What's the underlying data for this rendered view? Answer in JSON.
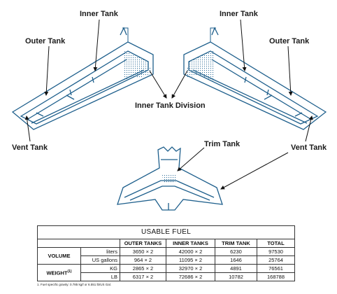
{
  "labels": {
    "inner_tank_left": "Inner Tank",
    "inner_tank_right": "Inner Tank",
    "outer_tank_left": "Outer Tank",
    "outer_tank_right": "Outer Tank",
    "inner_tank_division": "Inner Tank Division",
    "vent_tank_left": "Vent Tank",
    "vent_tank_right": "Vent Tank",
    "trim_tank": "Trim Tank"
  },
  "colors": {
    "structure": "#1e5f8c",
    "dots": "#2a6a96",
    "arrow": "#111111"
  },
  "table": {
    "title": "USABLE FUEL",
    "headers": [
      "OUTER TANKS",
      "INNER TANKS",
      "TRIM TANK",
      "TOTAL"
    ],
    "groups": [
      {
        "name": "VOLUME",
        "note": "",
        "rows": [
          {
            "unit": "liters",
            "values": [
              "3650 × 2",
              "42000 × 2",
              "6230",
              "97530"
            ]
          },
          {
            "unit": "US gallons",
            "values": [
              "964 × 2",
              "11095 × 2",
              "1646",
              "25764"
            ]
          }
        ]
      },
      {
        "name": "WEIGHT",
        "note": "(1)",
        "rows": [
          {
            "unit": "KG",
            "values": [
              "2865 × 2",
              "32970 × 2",
              "4891",
              "76561"
            ]
          },
          {
            "unit": "LB",
            "values": [
              "6317 × 2",
              "72686 × 2",
              "10782",
              "168788"
            ]
          }
        ]
      }
    ],
    "footnote": "1. Fuel specific gravity: 0.785 kg/l or 6.551 lb/US Gal."
  }
}
